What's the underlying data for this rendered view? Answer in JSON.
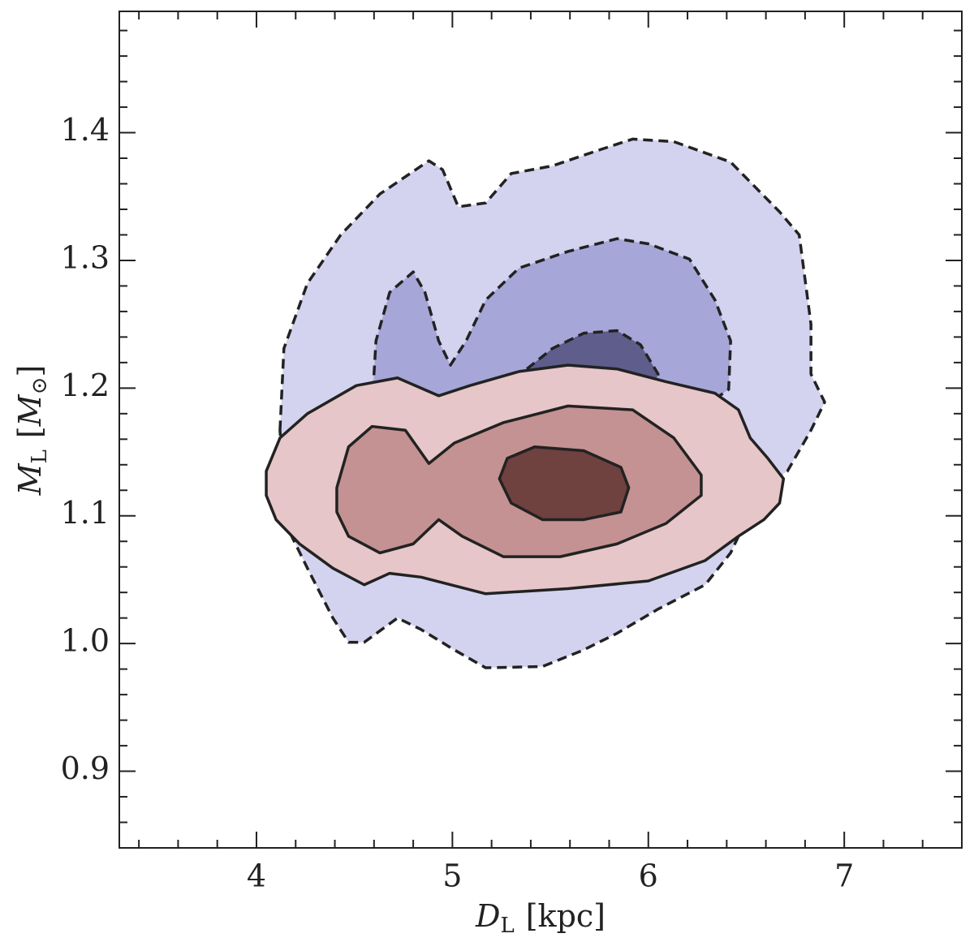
{
  "chart_data": {
    "type": "contour",
    "xlabel": {
      "symbol": "D",
      "subscript": "L",
      "unit": "[kpc]"
    },
    "ylabel": {
      "symbol": "M",
      "subscript": "L",
      "unit_open": "[",
      "unit_symbol": "M",
      "unit_subscript": "⊙",
      "unit_close": "]"
    },
    "xlim": [
      3.3,
      7.6
    ],
    "ylim": [
      0.84,
      1.495
    ],
    "xticks": [
      4,
      5,
      6,
      7
    ],
    "yticks": [
      0.9,
      {
        "value": 1,
        "label": "1.0"
      },
      1.1,
      1.2,
      1.3,
      1.4
    ],
    "xminorticks": [
      3.4,
      3.6,
      3.8,
      4.2,
      4.4,
      4.6,
      4.8,
      5.2,
      5.4,
      5.6,
      5.8,
      6.2,
      6.4,
      6.6,
      6.8,
      7.2,
      7.4
    ],
    "yminorticks": [
      0.86,
      0.88,
      0.92,
      0.94,
      0.96,
      0.98,
      1.02,
      1.04,
      1.06,
      1.08,
      1.12,
      1.14,
      1.16,
      1.18,
      1.22,
      1.24,
      1.26,
      1.28,
      1.32,
      1.34,
      1.36,
      1.38,
      1.42,
      1.44,
      1.46,
      1.48
    ],
    "series": [
      {
        "color": "#d3d3f0",
        "linestyle": "dashed",
        "x": [
          4.12,
          4.14,
          4.26,
          4.43,
          4.63,
          4.88,
          4.95,
          5.03,
          5.17,
          5.3,
          5.51,
          5.76,
          5.92,
          6.13,
          6.42,
          6.67,
          6.77,
          6.83,
          6.83,
          6.9,
          6.83,
          6.71,
          6.59,
          6.5,
          6.42,
          6.29,
          6.05,
          5.84,
          5.67,
          5.46,
          5.17,
          5.01,
          4.84,
          4.72,
          4.55,
          4.47,
          4.39,
          4.26,
          4.18,
          4.14
        ],
        "y": [
          1.167,
          1.231,
          1.282,
          1.32,
          1.352,
          1.378,
          1.371,
          1.342,
          1.345,
          1.368,
          1.374,
          1.387,
          1.395,
          1.393,
          1.377,
          1.338,
          1.32,
          1.25,
          1.211,
          1.189,
          1.167,
          1.135,
          1.122,
          1.097,
          1.071,
          1.046,
          1.027,
          1.008,
          0.995,
          0.982,
          0.981,
          0.995,
          1.011,
          1.02,
          1.001,
          1.001,
          1.02,
          1.059,
          1.084,
          1.122
        ]
      },
      {
        "color": "#a6a6d8",
        "linestyle": "dashed",
        "x": [
          4.59,
          4.61,
          4.68,
          4.8,
          4.86,
          4.93,
          4.99,
          5.07,
          5.17,
          5.34,
          5.59,
          5.84,
          6.0,
          6.21,
          6.34,
          6.42,
          6.41,
          6.29,
          6.2,
          4.6
        ],
        "y": [
          1.186,
          1.237,
          1.275,
          1.291,
          1.275,
          1.237,
          1.218,
          1.237,
          1.269,
          1.294,
          1.307,
          1.317,
          1.313,
          1.301,
          1.269,
          1.237,
          1.199,
          1.186,
          1.16,
          1.16
        ]
      },
      {
        "color": "#5e5d8c",
        "linestyle": "dashed",
        "x": [
          5.38,
          5.51,
          5.67,
          5.84,
          5.96,
          6.05,
          6.02,
          5.38
        ],
        "y": [
          1.215,
          1.231,
          1.243,
          1.245,
          1.234,
          1.211,
          1.199,
          1.19
        ]
      },
      {
        "color": "#e6c6c8",
        "linestyle": "solid",
        "x": [
          4.05,
          4.12,
          4.26,
          4.51,
          4.72,
          4.93,
          5.09,
          5.34,
          5.59,
          5.84,
          6.09,
          6.34,
          6.46,
          6.52,
          6.61,
          6.69,
          6.67,
          6.59,
          6.46,
          6.29,
          6.0,
          5.59,
          5.17,
          4.84,
          4.68,
          4.55,
          4.39,
          4.22,
          4.1,
          4.05
        ],
        "y": [
          1.135,
          1.161,
          1.18,
          1.202,
          1.208,
          1.194,
          1.202,
          1.213,
          1.218,
          1.215,
          1.205,
          1.196,
          1.183,
          1.161,
          1.145,
          1.129,
          1.11,
          1.097,
          1.084,
          1.065,
          1.049,
          1.043,
          1.039,
          1.052,
          1.055,
          1.046,
          1.059,
          1.078,
          1.097,
          1.116
        ]
      },
      {
        "color": "#c49292",
        "linestyle": "solid",
        "x": [
          4.41,
          4.47,
          4.59,
          4.76,
          4.88,
          5.01,
          5.26,
          5.59,
          5.92,
          6.13,
          6.27,
          6.27,
          6.09,
          5.84,
          5.55,
          5.26,
          5.05,
          4.93,
          4.8,
          4.63,
          4.47,
          4.41
        ],
        "y": [
          1.122,
          1.154,
          1.17,
          1.167,
          1.141,
          1.157,
          1.173,
          1.186,
          1.183,
          1.161,
          1.132,
          1.116,
          1.094,
          1.078,
          1.068,
          1.068,
          1.084,
          1.097,
          1.078,
          1.071,
          1.084,
          1.103
        ]
      },
      {
        "color": "#6f413f",
        "linestyle": "solid",
        "x": [
          5.24,
          5.28,
          5.42,
          5.67,
          5.86,
          5.9,
          5.86,
          5.67,
          5.46,
          5.3
        ],
        "y": [
          1.129,
          1.145,
          1.154,
          1.151,
          1.138,
          1.122,
          1.103,
          1.097,
          1.097,
          1.11
        ]
      }
    ]
  }
}
